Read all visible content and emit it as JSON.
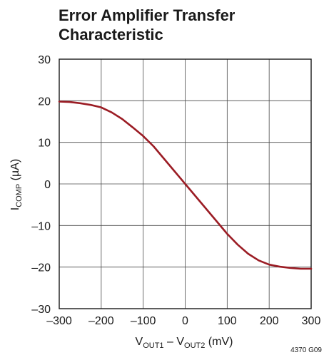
{
  "chart_data": {
    "type": "line",
    "title_lines": [
      "Error Amplifier Transfer",
      "Characteristic"
    ],
    "ylabel": {
      "main": "I",
      "sub": "COMP",
      "rest": " (µA)"
    },
    "xlabel": {
      "p1": "V",
      "s1": "OUT1",
      "p2": " – V",
      "s2": "OUT2",
      "p3": " (mV)"
    },
    "xlim": [
      -300,
      300
    ],
    "ylim": [
      -30,
      30
    ],
    "xticks": [
      -300,
      -200,
      -100,
      0,
      100,
      200,
      300
    ],
    "xtick_labels": [
      "–300",
      "–200",
      "–100",
      "0",
      "100",
      "200",
      "300"
    ],
    "yticks": [
      30,
      20,
      10,
      0,
      -10,
      -20,
      -30
    ],
    "ytick_labels": [
      "30",
      "20",
      "10",
      "0",
      "–10",
      "–20",
      "–30"
    ],
    "grid": true,
    "series": [
      {
        "color": "#9b1c24",
        "x": [
          -300,
          -275,
          -250,
          -225,
          -200,
          -175,
          -150,
          -125,
          -100,
          -75,
          -50,
          -25,
          0,
          25,
          50,
          75,
          100,
          125,
          150,
          175,
          200,
          225,
          250,
          275,
          300
        ],
        "y": [
          19.8,
          19.7,
          19.4,
          19.0,
          18.4,
          17.2,
          15.6,
          13.6,
          11.5,
          9.0,
          6.0,
          3.0,
          0.0,
          -3.0,
          -6.0,
          -9.0,
          -12.0,
          -14.6,
          -16.8,
          -18.4,
          -19.4,
          -19.9,
          -20.2,
          -20.4,
          -20.4
        ]
      }
    ],
    "figure_code": "4370 G09"
  }
}
